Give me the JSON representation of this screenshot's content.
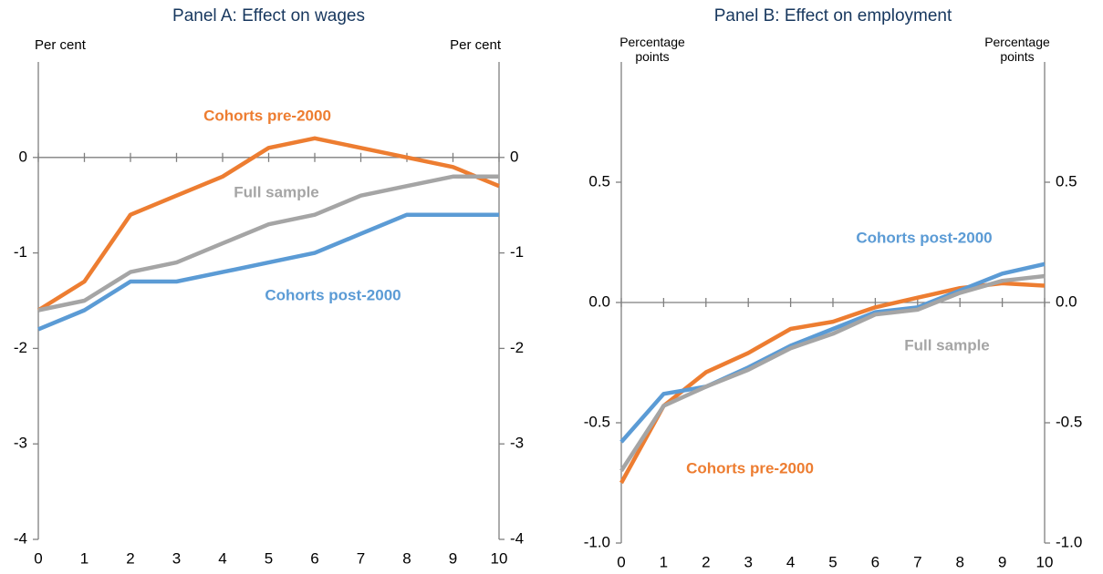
{
  "chart_data": [
    {
      "type": "line",
      "title": "Panel A: Effect on wages",
      "y_label": "Per cent",
      "y2_label": "Per cent",
      "x": [
        0,
        1,
        2,
        3,
        4,
        5,
        6,
        7,
        8,
        9,
        10
      ],
      "xlim": [
        0,
        10
      ],
      "xticks": [
        0,
        1,
        2,
        3,
        4,
        5,
        6,
        7,
        8,
        9,
        10
      ],
      "ylim": [
        -4,
        1
      ],
      "yticks": [
        -4,
        -3,
        -2,
        -1,
        0
      ],
      "y2lim": [
        -4,
        1
      ],
      "y2ticks": [
        -4,
        -3,
        -2,
        -1,
        0
      ],
      "series": [
        {
          "name": "Cohorts pre-2000",
          "color": "#ed7d31",
          "values": [
            -1.6,
            -1.3,
            -0.6,
            -0.4,
            -0.2,
            0.1,
            0.2,
            0.1,
            0.0,
            -0.1,
            -0.3
          ]
        },
        {
          "name": "Full sample",
          "color": "#a5a5a5",
          "values": [
            -1.6,
            -1.5,
            -1.2,
            -1.1,
            -0.9,
            -0.7,
            -0.6,
            -0.4,
            -0.3,
            -0.2,
            -0.2
          ]
        },
        {
          "name": "Cohorts post-2000",
          "color": "#5b9bd5",
          "values": [
            -1.8,
            -1.6,
            -1.3,
            -1.3,
            -1.2,
            -1.1,
            -1.0,
            -0.8,
            -0.6,
            -0.6,
            -0.6
          ]
        }
      ]
    },
    {
      "type": "line",
      "title": "Panel B: Effect on employment",
      "y_label": "Percentage points",
      "y2_label": "Percentage points",
      "x": [
        0,
        1,
        2,
        3,
        4,
        5,
        6,
        7,
        8,
        9,
        10
      ],
      "xlim": [
        0,
        10
      ],
      "xticks": [
        0,
        1,
        2,
        3,
        4,
        5,
        6,
        7,
        8,
        9,
        10
      ],
      "ylim": [
        -1,
        1
      ],
      "yticks": [
        {
          "value": -1,
          "label": "-1.0"
        },
        -0.5,
        {
          "value": 0,
          "label": "0.0"
        },
        0.5
      ],
      "y2lim": [
        -1,
        1
      ],
      "y2ticks": [
        {
          "value": -1,
          "label": "-1.0"
        },
        -0.5,
        {
          "value": 0,
          "label": "0.0"
        },
        0.5
      ],
      "series": [
        {
          "name": "Cohorts pre-2000",
          "color": "#ed7d31",
          "values": [
            -0.75,
            -0.43,
            -0.29,
            -0.21,
            -0.11,
            -0.08,
            -0.02,
            0.02,
            0.06,
            0.08,
            0.07
          ]
        },
        {
          "name": "Cohorts post-2000",
          "color": "#5b9bd5",
          "values": [
            -0.58,
            -0.38,
            -0.35,
            -0.27,
            -0.18,
            -0.11,
            -0.04,
            -0.02,
            0.05,
            0.12,
            0.16
          ]
        },
        {
          "name": "Full sample",
          "color": "#a5a5a5",
          "values": [
            -0.7,
            -0.43,
            -0.35,
            -0.28,
            -0.19,
            -0.13,
            -0.05,
            -0.03,
            0.04,
            0.09,
            0.11
          ]
        }
      ]
    }
  ]
}
